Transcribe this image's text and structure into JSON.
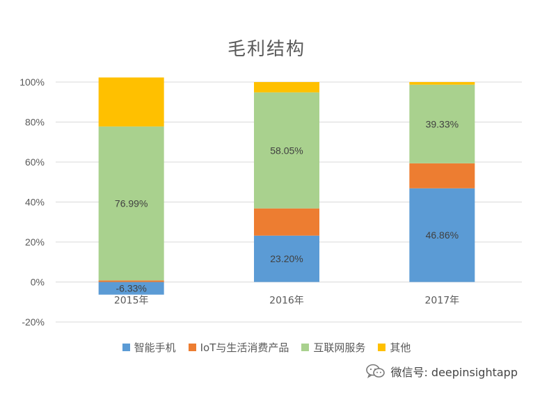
{
  "chart_data": {
    "type": "bar",
    "stacked": true,
    "title": "毛利结构",
    "categories": [
      "2015年",
      "2016年",
      "2017年"
    ],
    "ylim": [
      -20,
      100
    ],
    "yticks": [
      -20,
      0,
      20,
      40,
      60,
      80,
      100
    ],
    "ytick_labels": [
      "-20%",
      "0%",
      "20%",
      "40%",
      "60%",
      "80%",
      "100%"
    ],
    "grid": true,
    "legend_position": "bottom",
    "series": [
      {
        "name": "智能手机",
        "color": "#5B9BD5",
        "values": [
          -6.33,
          23.2,
          46.86
        ],
        "labels": [
          "-6.33%",
          "23.20%",
          "46.86%"
        ]
      },
      {
        "name": "IoT与生活消费产品",
        "color": "#ED7D31",
        "values": [
          0.8,
          13.6,
          12.5
        ],
        "labels": [
          "",
          "",
          ""
        ]
      },
      {
        "name": "互联网服务",
        "color": "#A9D18E",
        "values": [
          76.99,
          58.05,
          39.33
        ],
        "labels": [
          "76.99%",
          "58.05%",
          "39.33%"
        ]
      },
      {
        "name": "其他",
        "color": "#FFC000",
        "values": [
          24.5,
          5.15,
          1.31
        ],
        "labels": [
          "",
          "",
          ""
        ]
      }
    ]
  },
  "watermark": {
    "icon": "wechat-icon",
    "text": "微信号: deepinsightapp"
  }
}
